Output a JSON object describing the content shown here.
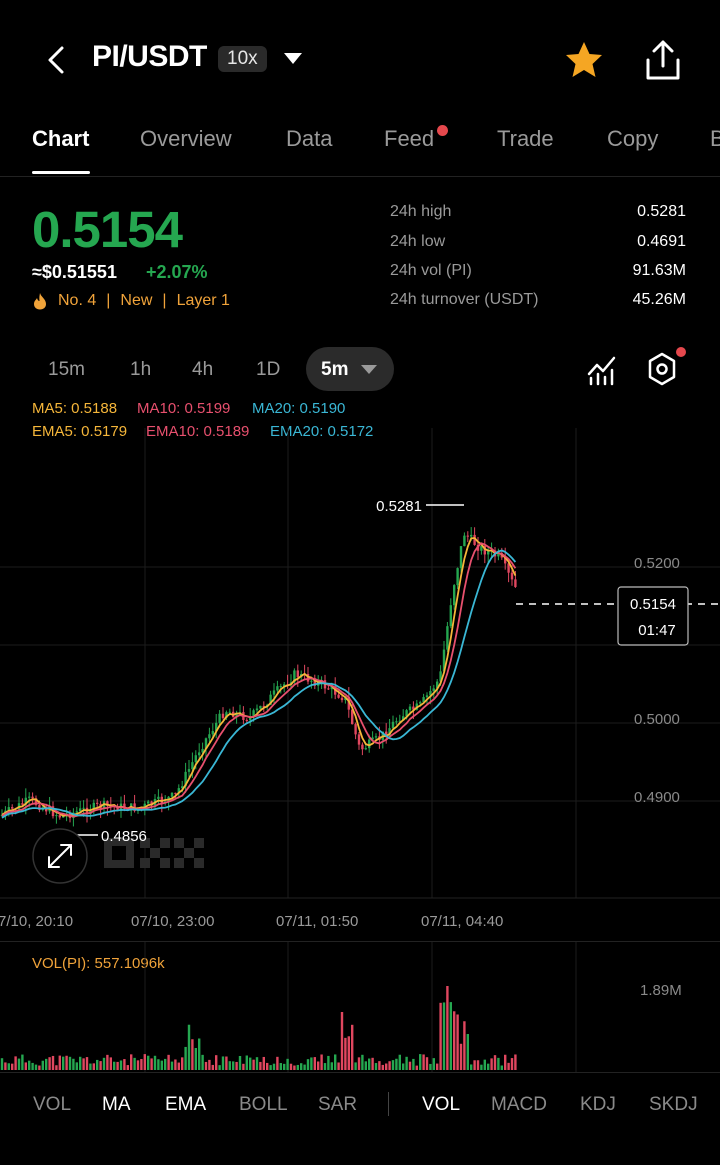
{
  "header": {
    "pair": "PI/USDT",
    "leverage": "10x",
    "icons": {
      "back": "chevron-left-icon",
      "favorite": "star-icon",
      "share": "share-icon"
    }
  },
  "tabs": [
    "Chart",
    "Overview",
    "Data",
    "Feed",
    "Trade",
    "Copy",
    "B"
  ],
  "active_tab": "Chart",
  "ticker": {
    "price": "0.5154",
    "usd": "≈$0.51551",
    "change": "+2.07%",
    "rank": "No. 4",
    "tag1": "New",
    "tag2": "Layer 1",
    "separator": "|",
    "stats": [
      {
        "label": "24h high",
        "value": "0.5281"
      },
      {
        "label": "24h low",
        "value": "0.4691"
      },
      {
        "label": "24h vol (PI)",
        "value": "91.63M"
      },
      {
        "label": "24h turnover (USDT)",
        "value": "45.26M"
      }
    ]
  },
  "intervals": [
    "15m",
    "1h",
    "4h",
    "1D"
  ],
  "selected_interval": "5m",
  "legend": {
    "ma5": "MA5: 0.5188",
    "ma10": "MA10: 0.5199",
    "ma20": "MA20: 0.5190",
    "ema5": "EMA5: 0.5179",
    "ema10": "EMA10: 0.5189",
    "ema20": "EMA20: 0.5172"
  },
  "chart": {
    "price_axis": [
      "0.5200",
      "0.5000",
      "0.4900"
    ],
    "time_axis": [
      "7/10, 20:10",
      "07/10, 23:00",
      "07/11, 01:50",
      "07/11, 04:40"
    ],
    "high_marker": "0.5281",
    "low_marker": "0.4856",
    "last_price": "0.5154",
    "countdown": "01:47",
    "vol_label": "VOL(PI): 557.1096k",
    "vol_axis": "1.89M"
  },
  "bottom_indicators": [
    "VOL",
    "MA",
    "EMA",
    "BOLL",
    "SAR",
    "VOL",
    "MACD",
    "KDJ",
    "SKDJ"
  ],
  "colors": {
    "up": "#25a750",
    "down": "#e0475f",
    "ma5": "#f5b63a",
    "ma10": "#e8506e",
    "ma20": "#3ab7d5",
    "accent_orange": "#f0a33a"
  }
}
